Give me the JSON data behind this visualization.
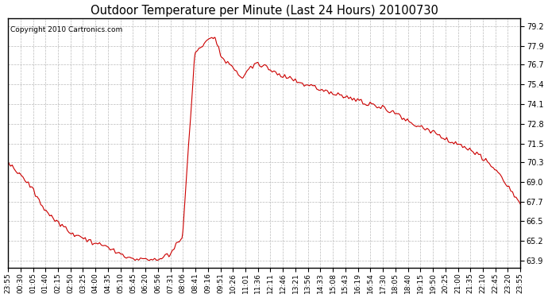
{
  "title": "Outdoor Temperature per Minute (Last 24 Hours) 20100730",
  "copyright": "Copyright 2010 Cartronics.com",
  "line_color": "#cc0000",
  "background_color": "#ffffff",
  "plot_bg_color": "#ffffff",
  "grid_color": "#aaaaaa",
  "yticks": [
    63.9,
    65.2,
    66.5,
    67.7,
    69.0,
    70.3,
    71.5,
    72.8,
    74.1,
    75.4,
    76.7,
    77.9,
    79.2
  ],
  "ylim": [
    63.4,
    79.7
  ],
  "xtick_labels": [
    "23:55",
    "00:30",
    "01:05",
    "01:40",
    "02:15",
    "02:50",
    "03:25",
    "04:00",
    "04:35",
    "05:10",
    "05:45",
    "06:20",
    "06:56",
    "07:31",
    "08:06",
    "08:41",
    "09:16",
    "09:51",
    "10:26",
    "11:01",
    "11:36",
    "12:11",
    "12:46",
    "13:21",
    "13:56",
    "14:33",
    "15:08",
    "15:43",
    "16:19",
    "16:54",
    "17:30",
    "18:05",
    "18:40",
    "19:15",
    "19:50",
    "20:25",
    "21:00",
    "21:35",
    "22:10",
    "22:45",
    "23:20",
    "23:55"
  ],
  "key_x": [
    0,
    35,
    70,
    105,
    140,
    175,
    210,
    245,
    280,
    315,
    350,
    385,
    420,
    455,
    490,
    525,
    560,
    580,
    600,
    620,
    640,
    660,
    680,
    700,
    720,
    740,
    760,
    790,
    820,
    850,
    875,
    900,
    930,
    960,
    990,
    1020,
    1050,
    1080,
    1110,
    1140,
    1170,
    1200,
    1230,
    1260,
    1290,
    1320,
    1350,
    1380,
    1410,
    1439
  ],
  "key_y": [
    70.3,
    69.5,
    68.5,
    67.2,
    66.3,
    65.8,
    65.3,
    65.0,
    64.7,
    64.3,
    64.0,
    64.0,
    64.0,
    64.3,
    65.5,
    77.5,
    78.2,
    78.5,
    77.2,
    76.7,
    76.3,
    75.8,
    76.5,
    76.7,
    76.6,
    76.3,
    76.1,
    75.8,
    75.5,
    75.3,
    75.1,
    74.9,
    74.7,
    74.5,
    74.3,
    74.1,
    73.9,
    73.6,
    73.2,
    72.8,
    72.5,
    72.2,
    71.8,
    71.5,
    71.2,
    70.8,
    70.3,
    69.5,
    68.5,
    67.7
  ]
}
